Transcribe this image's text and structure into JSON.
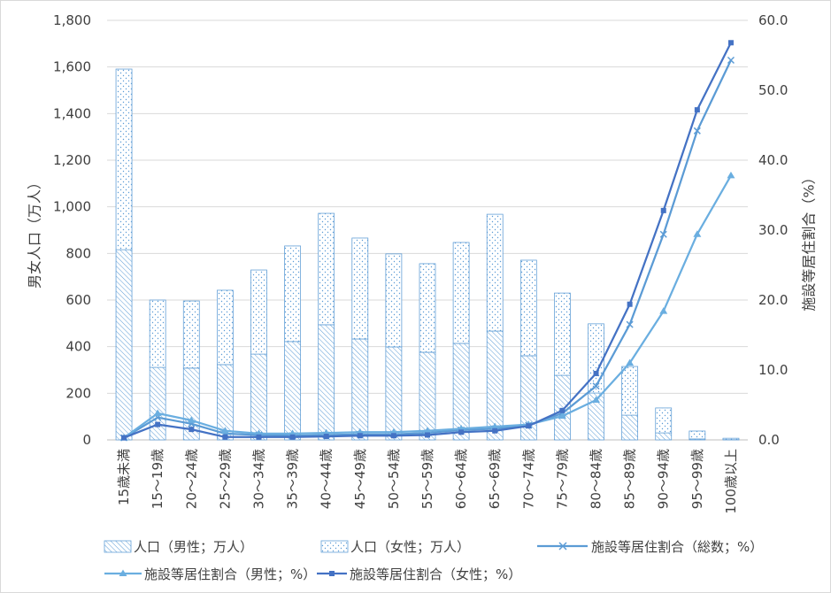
{
  "chart_data": {
    "type": "bar",
    "categories": [
      "15歳未満",
      "15～19歳",
      "20～24歳",
      "25～29歳",
      "30～34歳",
      "35～39歳",
      "40～44歳",
      "45～49歳",
      "50～54歳",
      "55～59歳",
      "60～64歳",
      "65～69歳",
      "70～74歳",
      "75～79歳",
      "80～84歳",
      "85～89歳",
      "90～94歳",
      "95～99歳",
      "100歳以上"
    ],
    "series": [
      {
        "name": "人口（男性；万人）",
        "type": "stacked-bar",
        "axis": "left",
        "fill": "diagonal-hatch",
        "color": "#5b9bd5",
        "values": [
          816,
          311,
          308,
          323,
          368,
          422,
          494,
          433,
          399,
          376,
          414,
          467,
          361,
          277,
          201,
          106,
          30,
          4,
          1
        ]
      },
      {
        "name": "人口（女性；万人）",
        "type": "stacked-bar",
        "axis": "left",
        "fill": "dots",
        "color": "#5b9bd5",
        "values": [
          775,
          289,
          288,
          319,
          361,
          410,
          478,
          433,
          399,
          380,
          433,
          501,
          410,
          353,
          297,
          209,
          107,
          34,
          6
        ]
      },
      {
        "name": "施設等居住割合（総数；%）",
        "type": "line",
        "axis": "right",
        "marker": "x",
        "color": "#5b9bd5",
        "values": [
          0.3,
          3.2,
          2.3,
          0.9,
          0.7,
          0.6,
          0.7,
          0.8,
          0.8,
          1.0,
          1.4,
          1.6,
          2.1,
          3.8,
          7.7,
          16.5,
          29.4,
          44.2,
          54.3
        ]
      },
      {
        "name": "施設等居住割合（男性；%）",
        "type": "line",
        "axis": "right",
        "marker": "triangle",
        "color": "#6aaee0",
        "values": [
          0.3,
          3.8,
          2.8,
          1.3,
          0.9,
          0.9,
          1.0,
          1.1,
          1.1,
          1.3,
          1.6,
          1.9,
          2.2,
          3.4,
          5.7,
          11.0,
          18.4,
          29.4,
          37.8
        ]
      },
      {
        "name": "施設等居住割合（女性；%）",
        "type": "line",
        "axis": "right",
        "marker": "square",
        "color": "#4472c4",
        "values": [
          0.3,
          2.2,
          1.5,
          0.4,
          0.4,
          0.4,
          0.5,
          0.6,
          0.6,
          0.7,
          1.1,
          1.3,
          2.0,
          4.2,
          9.5,
          19.4,
          32.8,
          47.2,
          56.8
        ]
      }
    ],
    "y_left": {
      "label": "男女人口（万人）",
      "ylim": [
        0,
        1800
      ],
      "tick_labels": [
        "0",
        "200",
        "400",
        "600",
        "800",
        "1,000",
        "1,200",
        "1,400",
        "1,600",
        "1,800"
      ]
    },
    "y_right": {
      "label": "施設等居住割合（%）",
      "ylim": [
        0,
        60
      ],
      "tick_labels": [
        "0.0",
        "10.0",
        "20.0",
        "30.0",
        "40.0",
        "50.0",
        "60.0"
      ]
    },
    "grid": true,
    "legend": "bottom"
  }
}
